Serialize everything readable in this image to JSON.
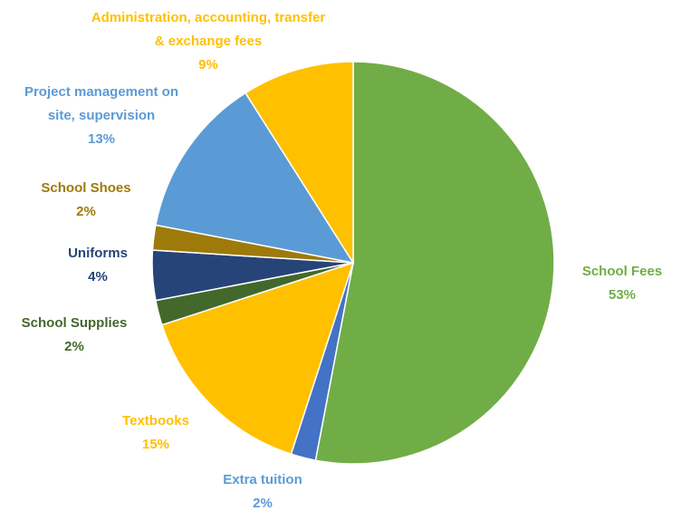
{
  "chart_data": {
    "type": "pie",
    "categories": [
      "School Fees",
      "Extra tuition",
      "Textbooks",
      "School Supplies",
      "Uniforms",
      "School Shoes",
      "Project management on site, supervision",
      "Administration, accounting, transfer & exchange fees"
    ],
    "values": [
      53,
      2,
      15,
      2,
      4,
      2,
      13,
      9
    ],
    "value_labels": [
      "53%",
      "2%",
      "15%",
      "2%",
      "4%",
      "2%",
      "13%",
      "9%"
    ],
    "colors": [
      "#70ad47",
      "#4472c4",
      "#ffc000",
      "#43682b",
      "#264478",
      "#9e7a0a",
      "#5b9bd5",
      "#ffc000"
    ],
    "label_colors": [
      "#70ad47",
      "#5b9bd5",
      "#ffc000",
      "#43682b",
      "#264478",
      "#9e7a0a",
      "#5b9bd5",
      "#ffc000"
    ]
  }
}
